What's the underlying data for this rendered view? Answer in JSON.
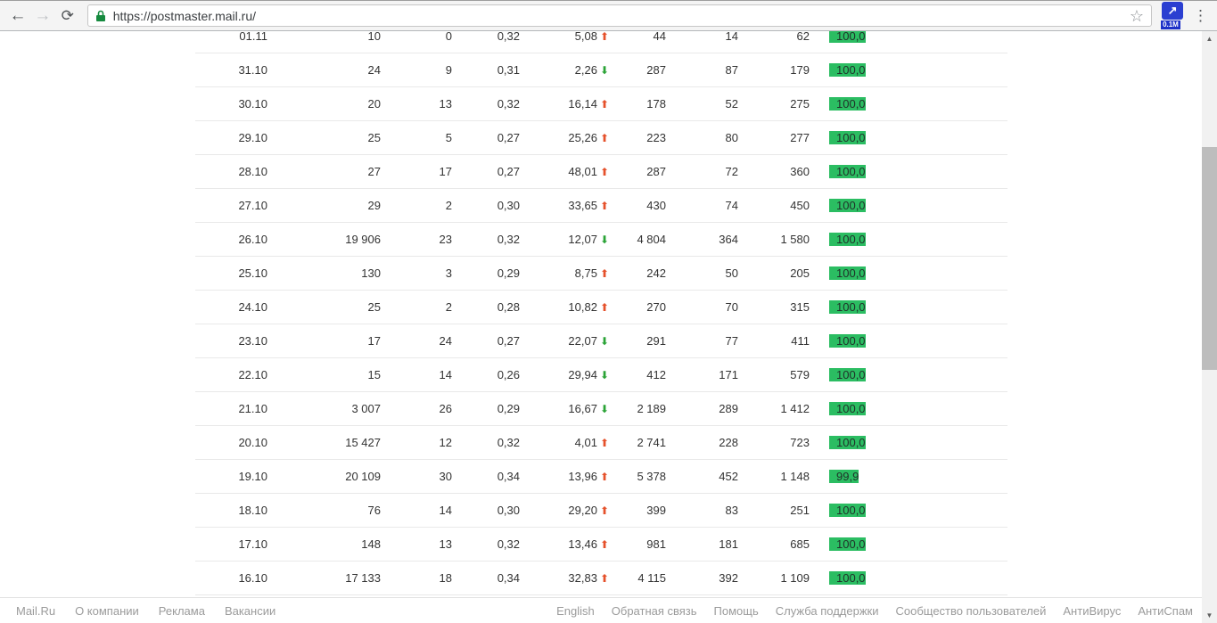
{
  "browser": {
    "url": "https://postmaster.mail.ru/",
    "extension_badge": "0.1M"
  },
  "icons": {
    "back": "←",
    "forward": "→",
    "reload": "⟳",
    "star": "☆",
    "ext_arrow": "↗",
    "menu": "⋮",
    "scroll_up": "▲",
    "scroll_down": "▼",
    "trend_up": "⬆",
    "trend_down": "⬇"
  },
  "colors": {
    "bar_green": "#2bbd62",
    "trend_up_red": "#e5512b",
    "trend_down_green": "#2aa336"
  },
  "chart_data": {
    "type": "table",
    "columns": [
      "date",
      "value1",
      "value2",
      "ratio",
      "percent_change",
      "trend",
      "value3",
      "value4",
      "value5",
      "delivery_rate"
    ],
    "rows_note": "rows listed in table.rows"
  },
  "table": {
    "rows": [
      {
        "date": "01.11",
        "c1": "10",
        "c2": "0",
        "c3": "0,32",
        "pct": "5,08",
        "trend": "up",
        "c5": "44",
        "c6": "14",
        "c7": "62",
        "bar_label": "100,0",
        "bar_value": 100.0
      },
      {
        "date": "31.10",
        "c1": "24",
        "c2": "9",
        "c3": "0,31",
        "pct": "2,26",
        "trend": "down",
        "c5": "287",
        "c6": "87",
        "c7": "179",
        "bar_label": "100,0",
        "bar_value": 100.0
      },
      {
        "date": "30.10",
        "c1": "20",
        "c2": "13",
        "c3": "0,32",
        "pct": "16,14",
        "trend": "up",
        "c5": "178",
        "c6": "52",
        "c7": "275",
        "bar_label": "100,0",
        "bar_value": 100.0
      },
      {
        "date": "29.10",
        "c1": "25",
        "c2": "5",
        "c3": "0,27",
        "pct": "25,26",
        "trend": "up",
        "c5": "223",
        "c6": "80",
        "c7": "277",
        "bar_label": "100,0",
        "bar_value": 100.0
      },
      {
        "date": "28.10",
        "c1": "27",
        "c2": "17",
        "c3": "0,27",
        "pct": "48,01",
        "trend": "up",
        "c5": "287",
        "c6": "72",
        "c7": "360",
        "bar_label": "100,0",
        "bar_value": 100.0
      },
      {
        "date": "27.10",
        "c1": "29",
        "c2": "2",
        "c3": "0,30",
        "pct": "33,65",
        "trend": "up",
        "c5": "430",
        "c6": "74",
        "c7": "450",
        "bar_label": "100,0",
        "bar_value": 100.0
      },
      {
        "date": "26.10",
        "c1": "19 906",
        "c2": "23",
        "c3": "0,32",
        "pct": "12,07",
        "trend": "down",
        "c5": "4 804",
        "c6": "364",
        "c7": "1 580",
        "bar_label": "100,0",
        "bar_value": 100.0
      },
      {
        "date": "25.10",
        "c1": "130",
        "c2": "3",
        "c3": "0,29",
        "pct": "8,75",
        "trend": "up",
        "c5": "242",
        "c6": "50",
        "c7": "205",
        "bar_label": "100,0",
        "bar_value": 100.0
      },
      {
        "date": "24.10",
        "c1": "25",
        "c2": "2",
        "c3": "0,28",
        "pct": "10,82",
        "trend": "up",
        "c5": "270",
        "c6": "70",
        "c7": "315",
        "bar_label": "100,0",
        "bar_value": 100.0
      },
      {
        "date": "23.10",
        "c1": "17",
        "c2": "24",
        "c3": "0,27",
        "pct": "22,07",
        "trend": "down",
        "c5": "291",
        "c6": "77",
        "c7": "411",
        "bar_label": "100,0",
        "bar_value": 100.0
      },
      {
        "date": "22.10",
        "c1": "15",
        "c2": "14",
        "c3": "0,26",
        "pct": "29,94",
        "trend": "down",
        "c5": "412",
        "c6": "171",
        "c7": "579",
        "bar_label": "100,0",
        "bar_value": 100.0
      },
      {
        "date": "21.10",
        "c1": "3 007",
        "c2": "26",
        "c3": "0,29",
        "pct": "16,67",
        "trend": "down",
        "c5": "2 189",
        "c6": "289",
        "c7": "1 412",
        "bar_label": "100,0",
        "bar_value": 100.0
      },
      {
        "date": "20.10",
        "c1": "15 427",
        "c2": "12",
        "c3": "0,32",
        "pct": "4,01",
        "trend": "up",
        "c5": "2 741",
        "c6": "228",
        "c7": "723",
        "bar_label": "100,0",
        "bar_value": 100.0
      },
      {
        "date": "19.10",
        "c1": "20 109",
        "c2": "30",
        "c3": "0,34",
        "pct": "13,96",
        "trend": "up",
        "c5": "5 378",
        "c6": "452",
        "c7": "1 148",
        "bar_label": "99,9",
        "bar_value": 99.9
      },
      {
        "date": "18.10",
        "c1": "76",
        "c2": "14",
        "c3": "0,30",
        "pct": "29,20",
        "trend": "up",
        "c5": "399",
        "c6": "83",
        "c7": "251",
        "bar_label": "100,0",
        "bar_value": 100.0
      },
      {
        "date": "17.10",
        "c1": "148",
        "c2": "13",
        "c3": "0,32",
        "pct": "13,46",
        "trend": "up",
        "c5": "981",
        "c6": "181",
        "c7": "685",
        "bar_label": "100,0",
        "bar_value": 100.0
      },
      {
        "date": "16.10",
        "c1": "17 133",
        "c2": "18",
        "c3": "0,34",
        "pct": "32,83",
        "trend": "up",
        "c5": "4 115",
        "c6": "392",
        "c7": "1 109",
        "bar_label": "100,0",
        "bar_value": 100.0
      }
    ]
  },
  "footer": {
    "left": [
      "Mail.Ru",
      "О компании",
      "Реклама",
      "Вакансии"
    ],
    "right": [
      "English",
      "Обратная связь",
      "Помощь",
      "Служба поддержки",
      "Сообщество пользователей",
      "АнтиВирус",
      "АнтиСпам"
    ]
  }
}
